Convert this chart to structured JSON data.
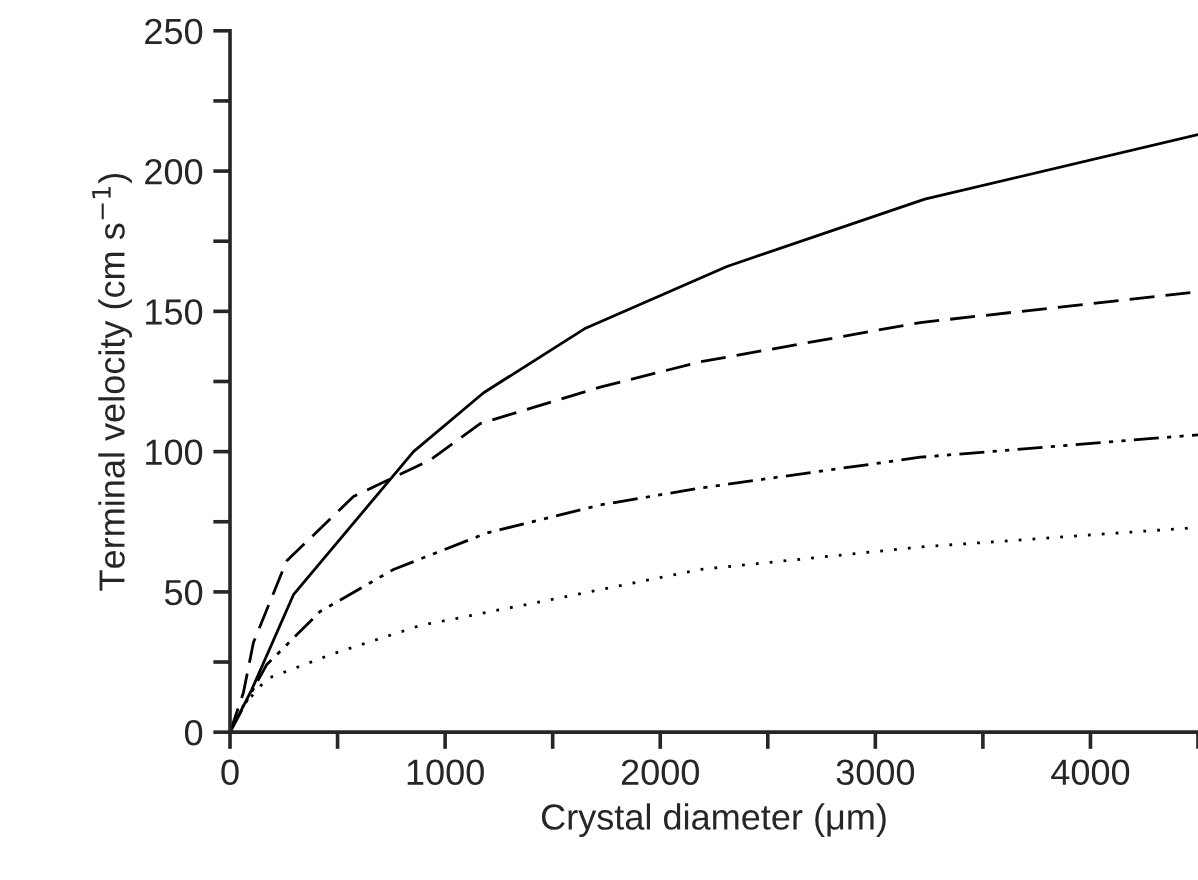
{
  "chart_data": {
    "type": "line",
    "xlabel": "Crystal diameter (μm)",
    "ylabel": "Terminal velocity (cm s$^{−1}$)",
    "xlim": [
      0,
      4500
    ],
    "ylim": [
      0,
      250
    ],
    "xticks": [
      0,
      {
        "value": 500,
        "label": null
      },
      1000,
      {
        "value": 1500,
        "label": null
      },
      2000,
      {
        "value": 2500,
        "label": null
      },
      3000,
      {
        "value": 3500,
        "label": null
      },
      4000,
      {
        "value": 4500,
        "label": null
      }
    ],
    "yticks": [
      0,
      {
        "value": 25,
        "label": null
      },
      50,
      {
        "value": 75,
        "label": null
      },
      100,
      {
        "value": 125,
        "label": null
      },
      150,
      {
        "value": 175,
        "label": null
      },
      200,
      {
        "value": 225,
        "label": null
      },
      250
    ],
    "grid": false,
    "series": [
      {
        "color": "#000000",
        "line_style": "solid",
        "x": [
          0,
          100,
          295,
          853,
          1179,
          1653,
          2310,
          3230,
          4500
        ],
        "values": [
          0,
          15,
          49,
          100,
          121,
          144,
          166,
          190,
          213
        ]
      },
      {
        "color": "#000000",
        "line_style": "dashed",
        "x": [
          0,
          62,
          109,
          263,
          574,
          930,
          1163,
          1721,
          2186,
          3209,
          4500
        ],
        "values": [
          0,
          14,
          32,
          61,
          84,
          97,
          110,
          123,
          132,
          146,
          157
        ]
      },
      {
        "color": "#000000",
        "line_style": "dashdot",
        "x": [
          0,
          77,
          170,
          419,
          760,
          1194,
          1721,
          2186,
          3209,
          4500
        ],
        "values": [
          0,
          11,
          24,
          43,
          58,
          71,
          81,
          87,
          98,
          106
        ]
      },
      {
        "color": "#000000",
        "line_style": "dotted",
        "x": [
          0,
          47,
          170,
          481,
          884,
          1411,
          2186,
          3209,
          4500
        ],
        "values": [
          0,
          8,
          19,
          28,
          38,
          46,
          58,
          66,
          73
        ]
      }
    ]
  }
}
